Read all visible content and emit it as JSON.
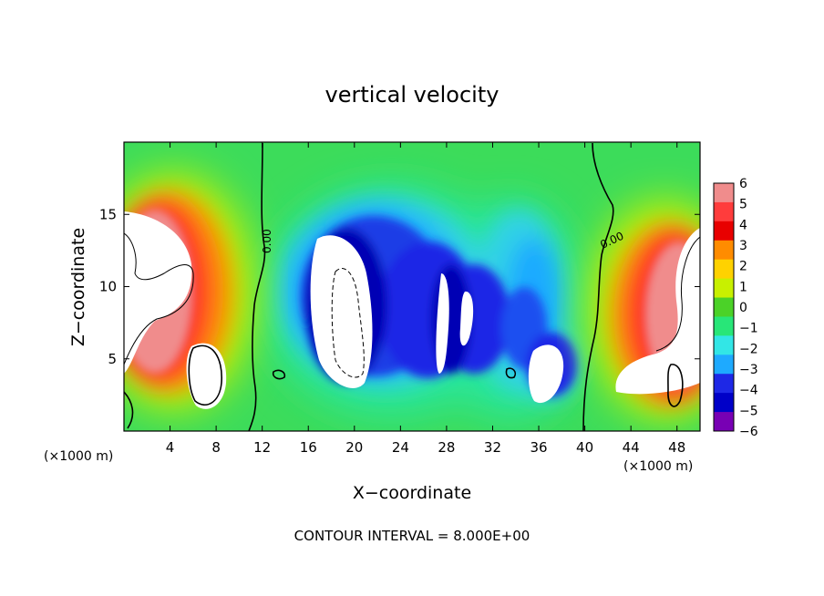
{
  "chart_data": {
    "type": "heatmap",
    "title": "vertical velocity",
    "xlabel": "X−coordinate",
    "ylabel": "Z−coordinate",
    "x_unit_left": "(×1000 m)",
    "x_unit_right": "(×1000 m)",
    "footer": "CONTOUR INTERVAL = 8.000E+00",
    "xlim": [
      0,
      50
    ],
    "ylim": [
      0,
      20
    ],
    "x_ticks": [
      4,
      8,
      12,
      16,
      20,
      24,
      28,
      32,
      36,
      40,
      44,
      48
    ],
    "y_ticks": [
      5,
      10,
      15
    ],
    "contour_label": "0.00",
    "colorbar": {
      "min": -6,
      "max": 6,
      "tick_labels": [
        "6",
        "5",
        "4",
        "3",
        "2",
        "1",
        "0",
        "−1",
        "−2",
        "−3",
        "−4",
        "−5",
        "−6"
      ],
      "colors": [
        "#f08c8c",
        "#ff3c3c",
        "#e80000",
        "#ff8c00",
        "#ffd200",
        "#c8f000",
        "#4bd228",
        "#28e678",
        "#32e6e6",
        "#1eaaff",
        "#1e28e6",
        "#0000c8",
        "#7800b4"
      ]
    },
    "features": [
      {
        "name": "left-updraft",
        "x": 4,
        "z": 11,
        "value": 6
      },
      {
        "name": "left-secondary-updraft",
        "x": 7,
        "z": 4,
        "value": 6
      },
      {
        "name": "downdraft-core",
        "x": 19,
        "z": 9,
        "value": -6
      },
      {
        "name": "downdraft-secondary",
        "x": 29,
        "z": 8,
        "value": -6
      },
      {
        "name": "downdraft-lower",
        "x": 37,
        "z": 3,
        "value": -6
      },
      {
        "name": "right-updraft",
        "x": 47,
        "z": 8,
        "value": 6
      }
    ]
  }
}
